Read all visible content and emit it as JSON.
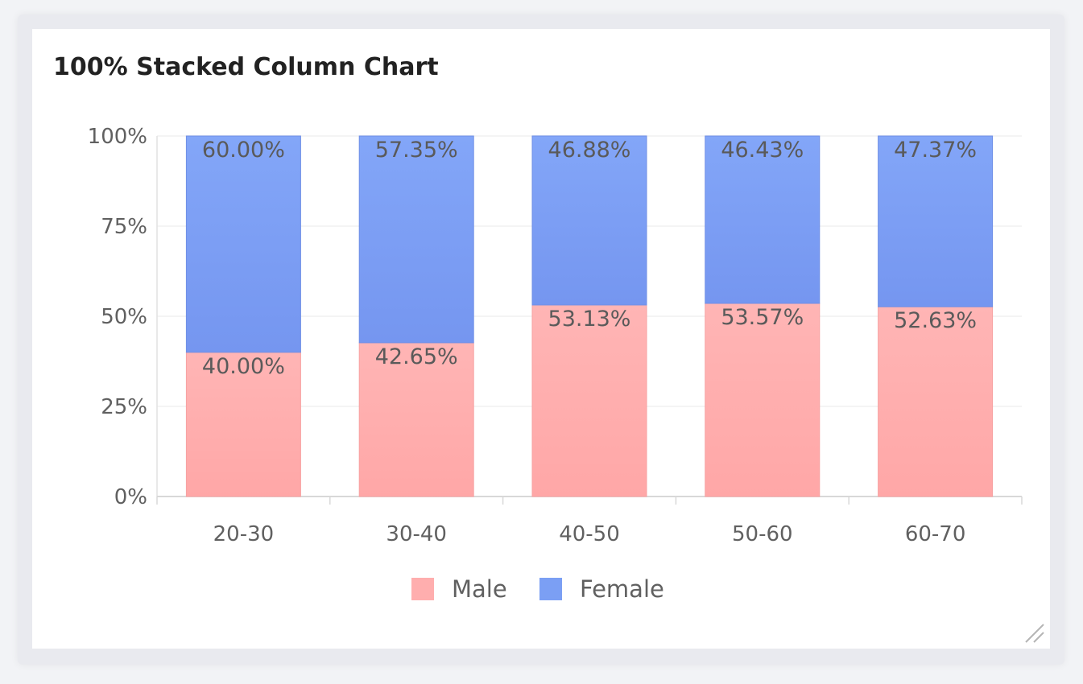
{
  "title": "100% Stacked Column Chart",
  "chart_data": {
    "type": "bar",
    "stacked": "percent",
    "title": "100% Stacked Column Chart",
    "categories": [
      "20-30",
      "30-40",
      "40-50",
      "50-60",
      "60-70"
    ],
    "series": [
      {
        "name": "Male",
        "color": "#ffaeae",
        "values": [
          40.0,
          42.65,
          53.13,
          53.57,
          52.63
        ]
      },
      {
        "name": "Female",
        "color": "#7b9ff4",
        "values": [
          60.0,
          57.35,
          46.88,
          46.43,
          47.37
        ]
      }
    ],
    "data_labels": [
      [
        "40.00%",
        "42.65%",
        "53.13%",
        "53.57%",
        "52.63%"
      ],
      [
        "60.00%",
        "57.35%",
        "46.88%",
        "46.43%",
        "47.37%"
      ]
    ],
    "y_ticks": [
      "0%",
      "25%",
      "50%",
      "75%",
      "100%"
    ],
    "ylim": [
      0,
      100
    ],
    "grid": true,
    "legend_position": "bottom-center"
  }
}
